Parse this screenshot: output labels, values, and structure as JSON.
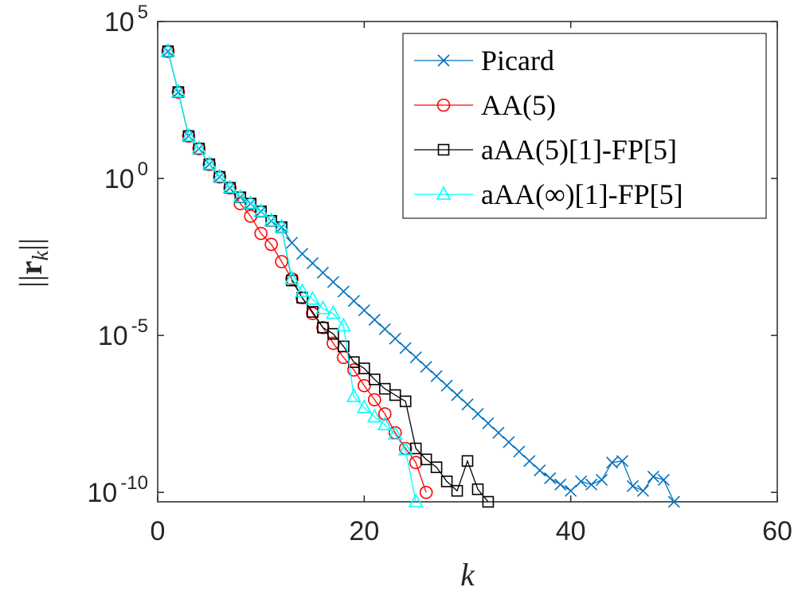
{
  "chart_data": {
    "type": "line",
    "xlabel": "k",
    "ylabel": "||r_k||",
    "xlim": [
      0,
      60
    ],
    "ylim_log10": [
      -10.3,
      5
    ],
    "y_scale": "log",
    "x_ticks": [
      "0",
      "20",
      "40",
      "60"
    ],
    "y_ticks": [
      {
        "base": "10",
        "exp": "5"
      },
      {
        "base": "10",
        "exp": "0"
      },
      {
        "base": "10",
        "exp": "-5"
      },
      {
        "base": "10",
        "exp": "-10"
      }
    ],
    "grid": false,
    "legend_position": "top-right",
    "series": [
      {
        "name": "Picard",
        "color": "#0072BD",
        "marker": "x",
        "x": [
          1,
          2,
          3,
          4,
          5,
          6,
          7,
          8,
          9,
          10,
          11,
          12,
          13,
          14,
          15,
          16,
          17,
          18,
          19,
          20,
          21,
          22,
          23,
          24,
          25,
          26,
          27,
          28,
          29,
          30,
          31,
          32,
          33,
          34,
          35,
          36,
          37,
          38,
          39,
          40,
          41,
          42,
          43,
          44,
          45,
          46,
          47,
          48,
          49,
          50
        ],
        "log10_y": [
          4.05,
          2.75,
          1.35,
          0.95,
          0.45,
          0.05,
          -0.3,
          -0.6,
          -0.8,
          -1.05,
          -1.35,
          -1.55,
          -2.05,
          -2.4,
          -2.7,
          -3.0,
          -3.3,
          -3.6,
          -3.9,
          -4.2,
          -4.5,
          -4.8,
          -5.1,
          -5.4,
          -5.7,
          -6.0,
          -6.3,
          -6.6,
          -6.9,
          -7.2,
          -7.5,
          -7.8,
          -8.1,
          -8.4,
          -8.7,
          -9.0,
          -9.3,
          -9.55,
          -9.75,
          -9.95,
          -9.65,
          -9.75,
          -9.6,
          -9.05,
          -9.0,
          -9.8,
          -9.95,
          -9.5,
          -9.6,
          -10.3
        ]
      },
      {
        "name": "AA(5)",
        "color": "#FF0000",
        "marker": "circle",
        "x": [
          1,
          2,
          3,
          4,
          5,
          6,
          7,
          8,
          9,
          10,
          11,
          12,
          13,
          14,
          15,
          16,
          17,
          18,
          19,
          20,
          21,
          22,
          23,
          24,
          25,
          26
        ],
        "log10_y": [
          4.05,
          2.75,
          1.35,
          0.95,
          0.45,
          0.05,
          -0.3,
          -0.8,
          -1.2,
          -1.75,
          -2.1,
          -2.65,
          -3.2,
          -3.8,
          -4.3,
          -4.75,
          -5.25,
          -5.7,
          -6.1,
          -6.6,
          -7.05,
          -7.5,
          -8.1,
          -8.6,
          -9.05,
          -10.0
        ]
      },
      {
        "name": "aAA(5)[1]-FP[5]",
        "color": "#000000",
        "marker": "square",
        "x": [
          1,
          2,
          3,
          4,
          5,
          6,
          7,
          8,
          9,
          10,
          11,
          12,
          13,
          14,
          15,
          16,
          17,
          18,
          19,
          20,
          21,
          22,
          23,
          24,
          25,
          26,
          27,
          28,
          29,
          30,
          31,
          32
        ],
        "log10_y": [
          4.05,
          2.75,
          1.35,
          0.95,
          0.45,
          0.05,
          -0.3,
          -0.6,
          -0.8,
          -1.05,
          -1.35,
          -1.55,
          -3.25,
          -3.8,
          -4.25,
          -4.75,
          -4.95,
          -5.35,
          -5.85,
          -6.05,
          -6.4,
          -6.7,
          -6.9,
          -7.1,
          -8.6,
          -8.95,
          -9.2,
          -9.65,
          -9.95,
          -9.0,
          -9.9,
          -10.3
        ]
      },
      {
        "name": "aAA(∞)[1]-FP[5]",
        "color": "#00FFFF",
        "marker": "triangle",
        "x": [
          1,
          2,
          3,
          4,
          5,
          6,
          7,
          8,
          9,
          10,
          11,
          12,
          13,
          14,
          15,
          16,
          17,
          18,
          19,
          20,
          21,
          22,
          23,
          24,
          25
        ],
        "log10_y": [
          4.05,
          2.75,
          1.35,
          0.95,
          0.45,
          0.05,
          -0.3,
          -0.6,
          -0.8,
          -1.05,
          -1.35,
          -1.55,
          -3.2,
          -3.6,
          -3.85,
          -4.15,
          -4.3,
          -4.7,
          -6.95,
          -7.3,
          -7.6,
          -7.85,
          -8.15,
          -8.65,
          -10.3
        ]
      }
    ]
  }
}
